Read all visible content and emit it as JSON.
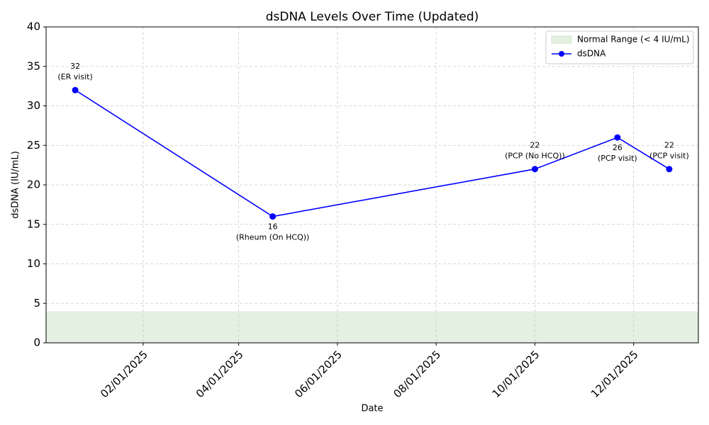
{
  "chart_data": {
    "type": "line",
    "title": "dsDNA Levels Over Time (Updated)",
    "x_label": "Date",
    "y_label": "dsDNA (IU/mL)",
    "x": [
      "12/21/2024",
      "04/22/2025",
      "10/01/2025",
      "11/21/2025",
      "12/23/2025"
    ],
    "series": [
      {
        "name": "dsDNA",
        "color": "#0000ff",
        "values": [
          32,
          16,
          22,
          26,
          22
        ]
      }
    ],
    "annotations": [
      "(ER visit)",
      "(Rheum (On HCQ))",
      "(PCP (No HCQ))",
      "(PCP visit)",
      "(PCP visit)"
    ],
    "annotation_positions": [
      "above",
      "below",
      "above",
      "below",
      "above"
    ],
    "bands": [
      {
        "name": "Normal Range (< 4 IU/mL)",
        "from": 0,
        "to": 4,
        "color": "#e4f0e1"
      }
    ],
    "xlim": [
      "12/03/2024",
      "01/10/2026"
    ],
    "xticks": [
      "02/01/2025",
      "04/01/2025",
      "06/01/2025",
      "08/01/2025",
      "10/01/2025",
      "12/01/2025"
    ],
    "ylim": [
      0,
      40
    ],
    "yticks": [
      0,
      5,
      10,
      15,
      20,
      25,
      30,
      35,
      40
    ],
    "grid": true,
    "legend": "upper right"
  }
}
